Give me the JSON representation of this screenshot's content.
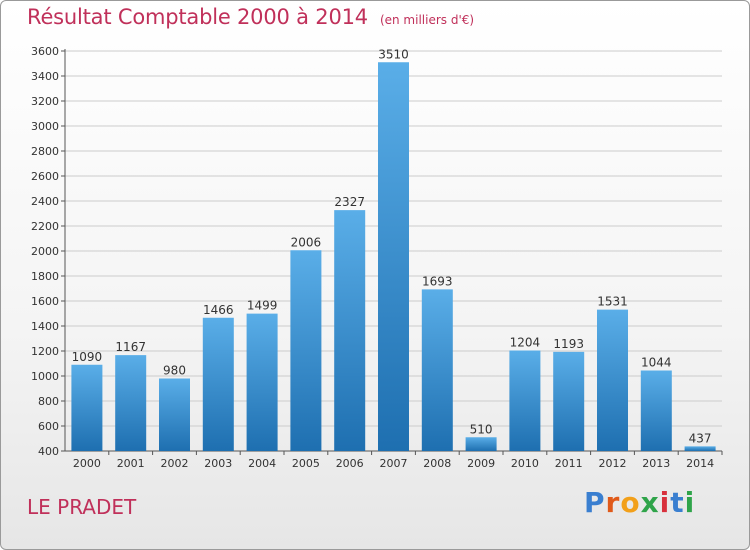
{
  "header": {
    "title": "Résultat Comptable 2000 à 2014",
    "unit": "(en milliers d'€)"
  },
  "footer": {
    "commune": "LE PRADET",
    "logo_text": "Proxiti"
  },
  "colors": {
    "title": "#c0305a",
    "bar_top": "#5aaee8",
    "bar_bottom": "#1e6fb0",
    "grid": "#cccccc"
  },
  "chart_data": {
    "type": "bar",
    "title": "Résultat Comptable 2000 à 2014",
    "categories": [
      "2000",
      "2001",
      "2002",
      "2003",
      "2004",
      "2005",
      "2006",
      "2007",
      "2008",
      "2009",
      "2010",
      "2011",
      "2012",
      "2013",
      "2014"
    ],
    "values": [
      1090,
      1167,
      980,
      1466,
      1499,
      2006,
      2327,
      3510,
      1693,
      510,
      1204,
      1193,
      1531,
      1044,
      437
    ],
    "ylim": [
      400,
      3600
    ],
    "yticks": [
      400,
      600,
      800,
      1000,
      1200,
      1400,
      1600,
      1800,
      2000,
      2200,
      2400,
      2600,
      2800,
      3000,
      3200,
      3400,
      3600
    ],
    "grid": true
  }
}
